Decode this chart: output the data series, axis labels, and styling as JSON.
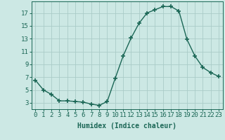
{
  "x_values": [
    0,
    1,
    2,
    3,
    4,
    5,
    6,
    7,
    8,
    9,
    10,
    11,
    12,
    13,
    14,
    15,
    16,
    17,
    18,
    19,
    20,
    21,
    22,
    23
  ],
  "y_values": [
    6.5,
    5.0,
    4.3,
    3.3,
    3.3,
    3.2,
    3.1,
    2.8,
    2.6,
    3.2,
    6.8,
    10.3,
    13.1,
    15.4,
    17.0,
    17.5,
    18.0,
    18.0,
    17.3,
    12.9,
    10.3,
    8.5,
    7.7,
    7.1
  ],
  "line_color": "#1a6655",
  "marker": "+",
  "marker_size": 4,
  "bg_color": "#cce8e4",
  "grid_color": "#aaccc8",
  "xlabel": "Humidex (Indice chaleur)",
  "xlim": [
    -0.5,
    23.5
  ],
  "ylim": [
    2.0,
    18.8
  ],
  "yticks": [
    3,
    5,
    7,
    9,
    11,
    13,
    15,
    17
  ],
  "xticks": [
    0,
    1,
    2,
    3,
    4,
    5,
    6,
    7,
    8,
    9,
    10,
    11,
    12,
    13,
    14,
    15,
    16,
    17,
    18,
    19,
    20,
    21,
    22,
    23
  ],
  "xlabel_fontsize": 7,
  "tick_fontsize": 6.5,
  "label_color": "#1a6655"
}
